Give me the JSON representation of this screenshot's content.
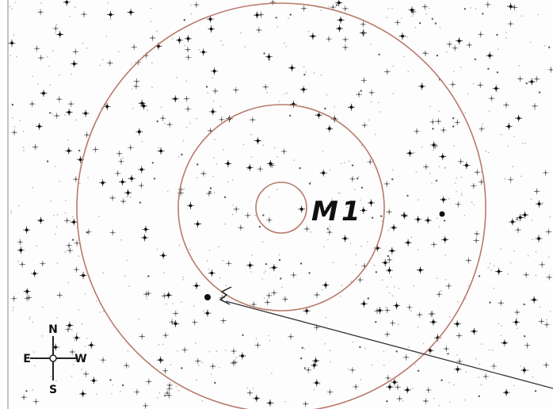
{
  "object_label": "M1",
  "compass": {
    "north": "N",
    "south": "S",
    "east": "E",
    "west": "W"
  }
}
